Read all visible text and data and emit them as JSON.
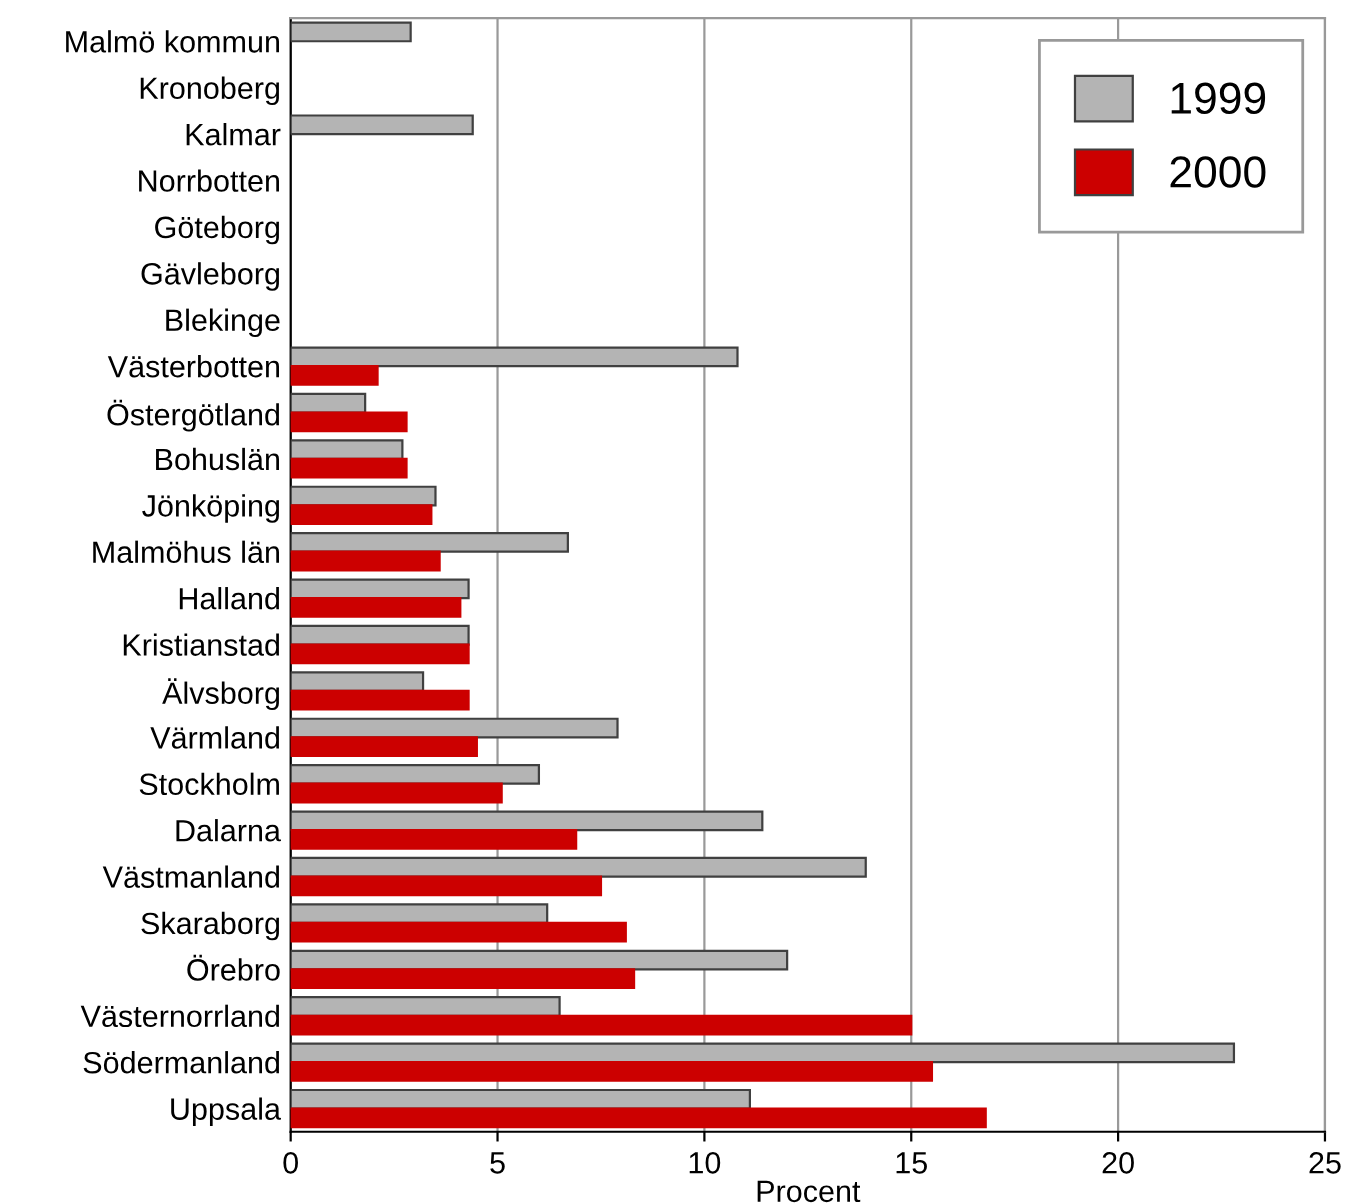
{
  "chart_data": {
    "type": "bar",
    "orientation": "horizontal",
    "xlabel": "Procent",
    "categories": [
      "Malmö kommun",
      "Kronoberg",
      "Kalmar",
      "Norrbotten",
      "Göteborg",
      "Gävleborg",
      "Blekinge",
      "Västerbotten",
      "Östergötland",
      "Bohuslän",
      "Jönköping",
      "Malmöhus län",
      "Halland",
      "Kristianstad",
      "Älvsborg",
      "Värmland",
      "Stockholm",
      "Dalarna",
      "Västmanland",
      "Skaraborg",
      "Örebro",
      "Västernorrland",
      "Södermanland",
      "Uppsala"
    ],
    "series": [
      {
        "name": "1999",
        "color": "#b4b4b4",
        "values": [
          2.9,
          null,
          4.4,
          null,
          null,
          null,
          null,
          10.8,
          1.8,
          2.7,
          3.5,
          6.7,
          4.3,
          4.3,
          3.2,
          7.9,
          6.0,
          11.4,
          13.9,
          6.2,
          12.0,
          6.5,
          22.8,
          11.1
        ]
      },
      {
        "name": "2000",
        "color": "#cc0000",
        "values": [
          null,
          null,
          null,
          null,
          null,
          null,
          null,
          2.1,
          2.8,
          2.8,
          3.4,
          3.6,
          4.1,
          4.3,
          4.3,
          4.5,
          5.1,
          6.9,
          7.5,
          8.1,
          8.3,
          15.0,
          15.5,
          16.8
        ]
      }
    ],
    "xlim": [
      0,
      25
    ],
    "xticks": [
      0,
      5,
      10,
      15,
      20,
      25
    ],
    "grid": "x",
    "legend": "top right"
  }
}
